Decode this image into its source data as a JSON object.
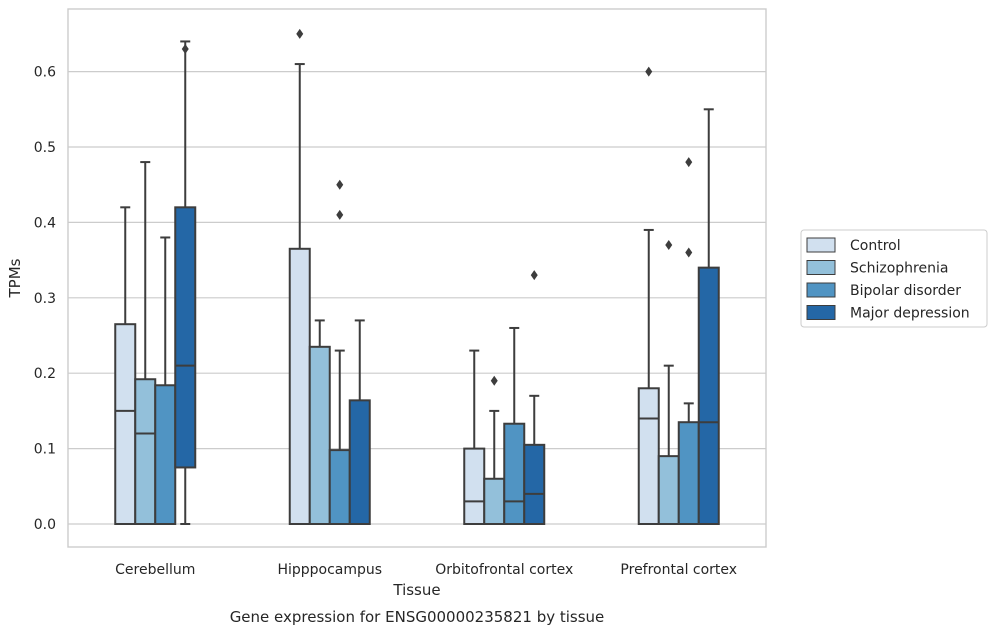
{
  "chart_data": {
    "type": "box",
    "title": "",
    "caption": "Gene expression for ENSG00000235821 by tissue",
    "xlabel": "Tissue",
    "ylabel": "TPMs",
    "ylim": [
      -0.032,
      0.685
    ],
    "yticks": [
      0.0,
      0.1,
      0.2,
      0.3,
      0.4,
      0.5,
      0.6
    ],
    "ytick_labels": [
      "0.0",
      "0.1",
      "0.2",
      "0.3",
      "0.4",
      "0.5",
      "0.6"
    ],
    "grid": "horizontal",
    "legend_position": "right",
    "categories": [
      "Cerebellum",
      "Hipppocampus",
      "Orbitofrontal cortex",
      "Prefrontal cortex"
    ],
    "series": [
      {
        "name": "Control",
        "color": "#d1e0ef",
        "boxes": [
          {
            "whisker_low": 0.0,
            "q1": 0.0,
            "median": 0.15,
            "q3": 0.265,
            "whisker_high": 0.42,
            "outliers": []
          },
          {
            "whisker_low": 0.0,
            "q1": 0.0,
            "median": 0.0,
            "q3": 0.365,
            "whisker_high": 0.61,
            "outliers": [
              0.65
            ]
          },
          {
            "whisker_low": 0.0,
            "q1": 0.0,
            "median": 0.03,
            "q3": 0.1,
            "whisker_high": 0.23,
            "outliers": []
          },
          {
            "whisker_low": 0.0,
            "q1": 0.0,
            "median": 0.14,
            "q3": 0.18,
            "whisker_high": 0.39,
            "outliers": [
              0.6
            ]
          }
        ]
      },
      {
        "name": "Schizophrenia",
        "color": "#93c0da",
        "boxes": [
          {
            "whisker_low": 0.0,
            "q1": 0.0,
            "median": 0.12,
            "q3": 0.192,
            "whisker_high": 0.48,
            "outliers": []
          },
          {
            "whisker_low": 0.0,
            "q1": 0.0,
            "median": 0.0,
            "q3": 0.235,
            "whisker_high": 0.27,
            "outliers": []
          },
          {
            "whisker_low": 0.0,
            "q1": 0.0,
            "median": 0.0,
            "q3": 0.06,
            "whisker_high": 0.15,
            "outliers": [
              0.19
            ]
          },
          {
            "whisker_low": 0.0,
            "q1": 0.0,
            "median": 0.0,
            "q3": 0.09,
            "whisker_high": 0.21,
            "outliers": [
              0.37
            ]
          }
        ]
      },
      {
        "name": "Bipolar disorder",
        "color": "#5094c3",
        "boxes": [
          {
            "whisker_low": 0.0,
            "q1": 0.0,
            "median": 0.0,
            "q3": 0.184,
            "whisker_high": 0.38,
            "outliers": []
          },
          {
            "whisker_low": 0.0,
            "q1": 0.0,
            "median": 0.0,
            "q3": 0.098,
            "whisker_high": 0.23,
            "outliers": [
              0.41,
              0.45
            ]
          },
          {
            "whisker_low": 0.0,
            "q1": 0.0,
            "median": 0.03,
            "q3": 0.133,
            "whisker_high": 0.26,
            "outliers": []
          },
          {
            "whisker_low": 0.0,
            "q1": 0.0,
            "median": 0.0,
            "q3": 0.135,
            "whisker_high": 0.16,
            "outliers": [
              0.36,
              0.48
            ]
          }
        ]
      },
      {
        "name": "Major depression",
        "color": "#2467a6",
        "boxes": [
          {
            "whisker_low": 0.0,
            "q1": 0.075,
            "median": 0.21,
            "q3": 0.42,
            "whisker_high": 0.64,
            "outliers": [
              0.63
            ]
          },
          {
            "whisker_low": 0.0,
            "q1": 0.0,
            "median": 0.0,
            "q3": 0.164,
            "whisker_high": 0.27,
            "outliers": []
          },
          {
            "whisker_low": 0.0,
            "q1": 0.0,
            "median": 0.04,
            "q3": 0.105,
            "whisker_high": 0.17,
            "outliers": [
              0.33
            ]
          },
          {
            "whisker_low": 0.0,
            "q1": 0.0,
            "median": 0.135,
            "q3": 0.34,
            "whisker_high": 0.55,
            "outliers": []
          }
        ]
      }
    ]
  }
}
